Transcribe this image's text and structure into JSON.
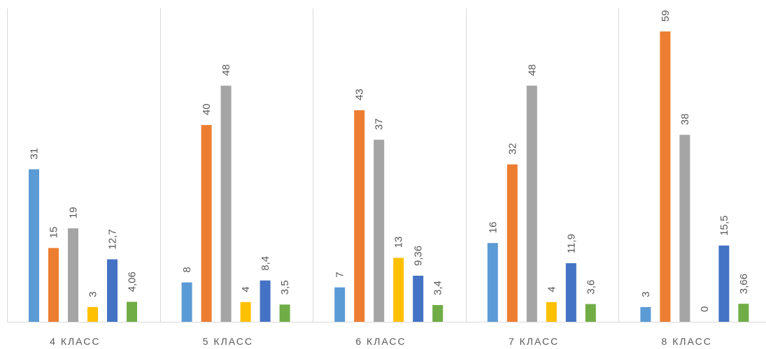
{
  "chart_data": {
    "type": "bar",
    "title": "",
    "xlabel": "",
    "ylabel": "",
    "ylim": [
      0,
      62
    ],
    "grid": false,
    "legend": "none",
    "categories": [
      "4 КЛАСС",
      "5 КЛАСС",
      "6 КЛАСС",
      "7 КЛАСС",
      "8 КЛАСС"
    ],
    "series": [
      {
        "color": "#5b9bd5",
        "values": [
          31,
          8,
          7,
          16,
          3
        ],
        "labels": [
          "31",
          "8",
          "7",
          "16",
          "3"
        ]
      },
      {
        "color": "#ed7d31",
        "values": [
          15,
          40,
          43,
          32,
          59
        ],
        "labels": [
          "15",
          "40",
          "43",
          "32",
          "59"
        ]
      },
      {
        "color": "#a5a5a5",
        "values": [
          19,
          48,
          37,
          48,
          38
        ],
        "labels": [
          "19",
          "48",
          "37",
          "48",
          "38"
        ]
      },
      {
        "color": "#ffc000",
        "values": [
          3,
          4,
          13,
          4,
          0
        ],
        "labels": [
          "3",
          "4",
          "13",
          "4",
          "0"
        ]
      },
      {
        "color": "#4472c4",
        "values": [
          12.7,
          8.4,
          9.36,
          11.9,
          15.5
        ],
        "labels": [
          "12,7",
          "8,4",
          "9,36",
          "11,9",
          "15,5"
        ]
      },
      {
        "color": "#70ad47",
        "values": [
          4.06,
          3.5,
          3.4,
          3.6,
          3.66
        ],
        "labels": [
          "4,06",
          "3,5",
          "3,4",
          "3,6",
          "3,66"
        ]
      }
    ]
  }
}
